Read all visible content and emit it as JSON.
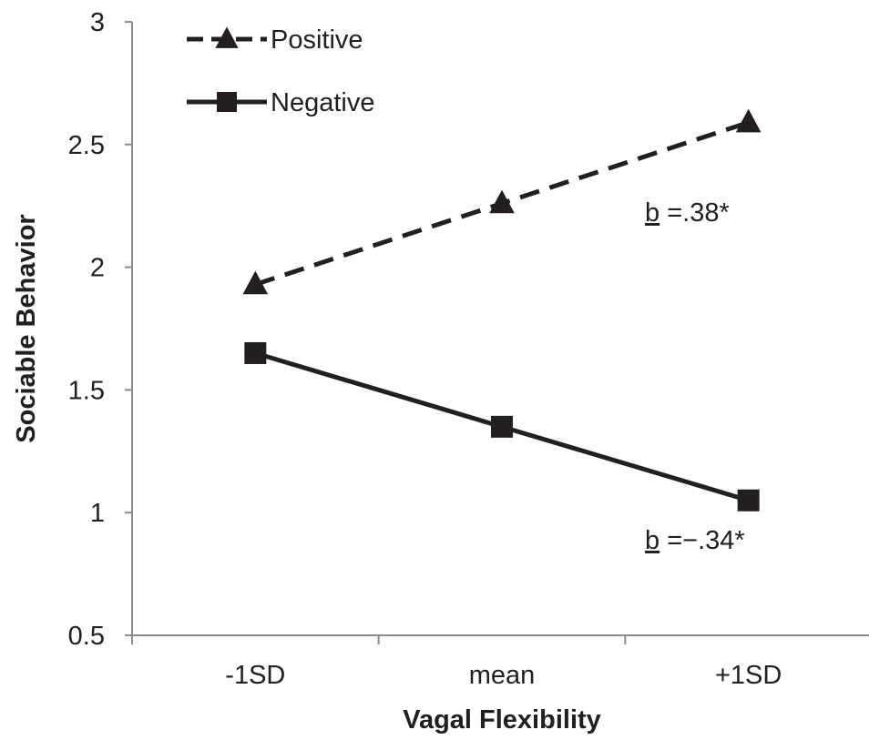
{
  "chart_data": {
    "type": "line",
    "title": "",
    "xlabel": "Vagal Flexibility",
    "ylabel": "Sociable Behavior",
    "categories": [
      "-1SD",
      "mean",
      "+1SD"
    ],
    "ylim": [
      0.5,
      3
    ],
    "yticks": [
      "0.5",
      "1",
      "1.5",
      "2",
      "2.5",
      "3"
    ],
    "grid": false,
    "legend_position": "top-left",
    "series": [
      {
        "name": "Positive",
        "values": [
          1.93,
          2.26,
          2.59
        ],
        "line_style": "dashed",
        "marker": "triangle",
        "color": "#231f20"
      },
      {
        "name": "Negative",
        "values": [
          1.65,
          1.35,
          1.05
        ],
        "line_style": "solid",
        "marker": "square",
        "color": "#231f20"
      }
    ],
    "annotations": [
      {
        "prefix": "b",
        "suffix": " =.38*",
        "series": "Positive"
      },
      {
        "prefix": "b",
        "suffix": " =−.34*",
        "series": "Negative"
      }
    ]
  }
}
